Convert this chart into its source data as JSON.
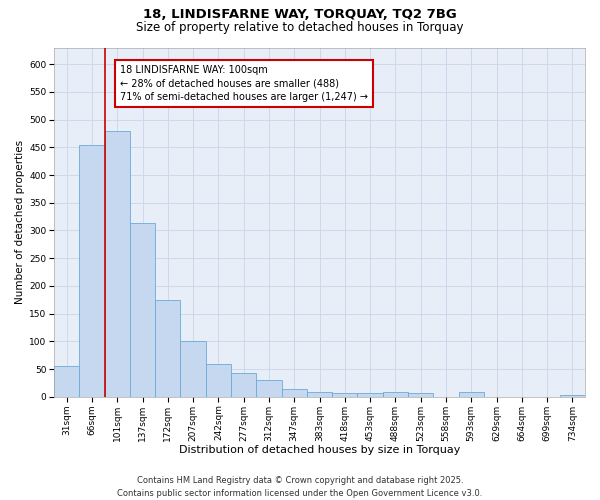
{
  "title1": "18, LINDISFARNE WAY, TORQUAY, TQ2 7BG",
  "title2": "Size of property relative to detached houses in Torquay",
  "xlabel": "Distribution of detached houses by size in Torquay",
  "ylabel": "Number of detached properties",
  "categories": [
    "31sqm",
    "66sqm",
    "101sqm",
    "137sqm",
    "172sqm",
    "207sqm",
    "242sqm",
    "277sqm",
    "312sqm",
    "347sqm",
    "383sqm",
    "418sqm",
    "453sqm",
    "488sqm",
    "523sqm",
    "558sqm",
    "593sqm",
    "629sqm",
    "664sqm",
    "699sqm",
    "734sqm"
  ],
  "values": [
    55,
    455,
    480,
    313,
    175,
    100,
    60,
    43,
    30,
    15,
    8,
    7,
    7,
    8,
    6,
    0,
    8,
    0,
    0,
    0,
    4
  ],
  "bar_color": "#c5d8f0",
  "bar_edge_color": "#6baad8",
  "grid_color": "#c8d4e8",
  "bg_color": "#e8eef8",
  "red_color": "#cc0000",
  "property_line_idx": 2,
  "annotation_line1": "18 LINDISFARNE WAY: 100sqm",
  "annotation_line2": "← 28% of detached houses are smaller (488)",
  "annotation_line3": "71% of semi-detached houses are larger (1,247) →",
  "ylim": [
    0,
    630
  ],
  "yticks": [
    0,
    50,
    100,
    150,
    200,
    250,
    300,
    350,
    400,
    450,
    500,
    550,
    600
  ],
  "footer": "Contains HM Land Registry data © Crown copyright and database right 2025.\nContains public sector information licensed under the Open Government Licence v3.0.",
  "title1_fontsize": 9.5,
  "title2_fontsize": 8.5,
  "xlabel_fontsize": 8,
  "ylabel_fontsize": 7.5,
  "tick_fontsize": 6.5,
  "annotation_fontsize": 7,
  "footer_fontsize": 6
}
